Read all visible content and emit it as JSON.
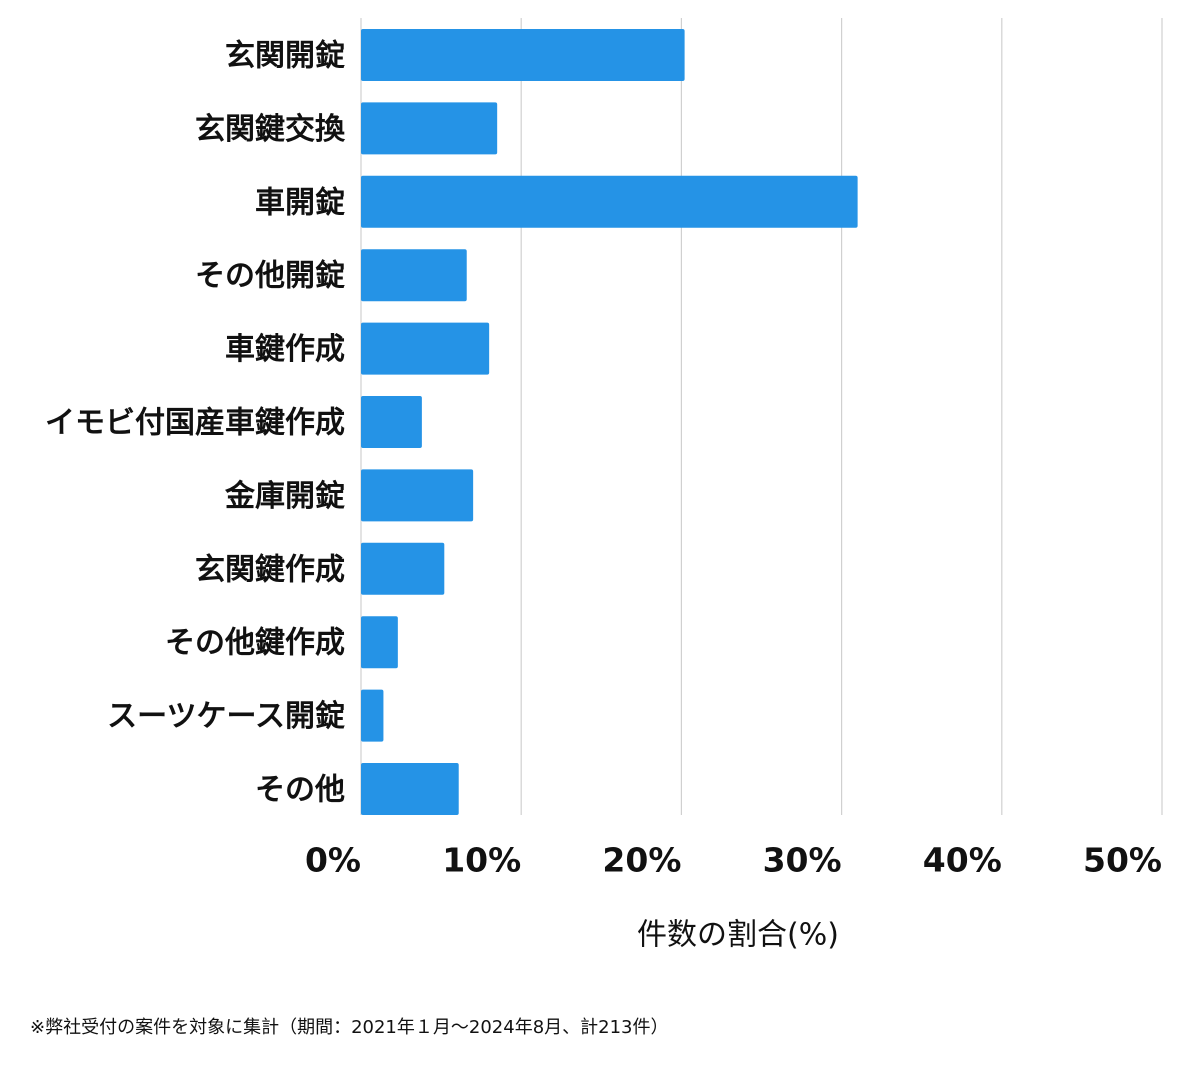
{
  "chart_data": {
    "type": "bar",
    "orientation": "horizontal",
    "categories": [
      "玄関開錠",
      "玄関鍵交換",
      "車開錠",
      "その他開錠",
      "車鍵作成",
      "イモビ付国産車鍵作成",
      "金庫開錠",
      "玄関鍵作成",
      "その他鍵作成",
      "スーツケース開錠",
      "その他"
    ],
    "values": [
      20.2,
      8.5,
      31.0,
      6.6,
      8.0,
      3.8,
      7.0,
      5.2,
      2.3,
      1.4,
      6.1
    ],
    "color": "#2593e6",
    "xlim": [
      0,
      50
    ],
    "xticks": [
      {
        "value": 0,
        "label": "0%"
      },
      {
        "value": 10,
        "label": "10%"
      },
      {
        "value": 20,
        "label": "20%"
      },
      {
        "value": 30,
        "label": "30%"
      },
      {
        "value": 40,
        "label": "40%"
      },
      {
        "value": 50,
        "label": "50%"
      }
    ],
    "grid": true,
    "x_label": "件数の割合(%)",
    "footnote": "※弊社受付の案件を対象に集計（期間：2021年１月～2024年8月、計213件）"
  }
}
